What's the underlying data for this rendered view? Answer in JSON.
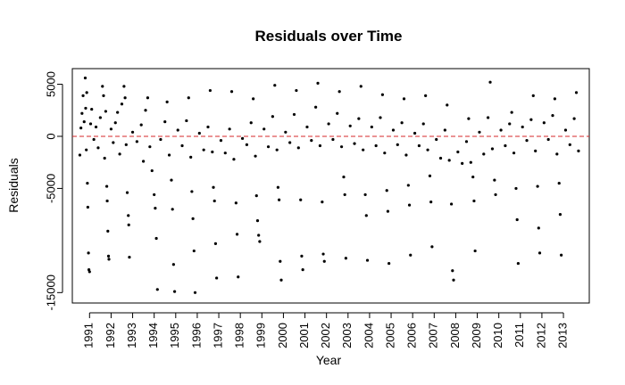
{
  "chart_data": {
    "type": "scatter",
    "title": "Residuals over Time",
    "xlabel": "Year",
    "ylabel": "Residuals",
    "x_ticks": [
      "1991",
      "1992",
      "1993",
      "1994",
      "1995",
      "1996",
      "1997",
      "1998",
      "1999",
      "2000",
      "2001",
      "2002",
      "2003",
      "2004",
      "2005",
      "2006",
      "2007",
      "2008",
      "2009",
      "2010",
      "2011",
      "2012",
      "2013"
    ],
    "y_ticks": [
      "5000",
      "0",
      "-5000",
      "-15000"
    ],
    "xlim": [
      1990.2,
      2014.2
    ],
    "ylim": [
      -16000,
      6500
    ],
    "grid": false,
    "legend": "none",
    "reference_line": {
      "y": 0,
      "color": "#d62728",
      "style": "dashed"
    },
    "point_color": "#000000",
    "series": [
      {
        "points": [
          [
            1990.55,
            -1800
          ],
          [
            1990.6,
            800
          ],
          [
            1990.65,
            2200
          ],
          [
            1990.7,
            3900
          ],
          [
            1990.75,
            1400
          ],
          [
            1990.8,
            5600
          ],
          [
            1990.82,
            2700
          ],
          [
            1990.85,
            -1300
          ],
          [
            1990.87,
            4200
          ],
          [
            1990.9,
            -4500
          ],
          [
            1990.92,
            -6800
          ],
          [
            1990.95,
            -11200
          ],
          [
            1990.97,
            -12800
          ],
          [
            1991.0,
            -13000
          ],
          [
            1991.05,
            1200
          ],
          [
            1991.1,
            2600
          ],
          [
            1991.2,
            -300
          ],
          [
            1991.3,
            900
          ],
          [
            1991.4,
            -1100
          ],
          [
            1991.5,
            1800
          ],
          [
            1991.6,
            4800
          ],
          [
            1991.65,
            3900
          ],
          [
            1991.7,
            -2100
          ],
          [
            1991.75,
            2400
          ],
          [
            1991.8,
            -4800
          ],
          [
            1991.82,
            -6200
          ],
          [
            1991.85,
            -9100
          ],
          [
            1991.88,
            -11500
          ],
          [
            1991.9,
            -11800
          ],
          [
            1992.0,
            700
          ],
          [
            1992.1,
            -600
          ],
          [
            1992.2,
            1300
          ],
          [
            1992.3,
            2300
          ],
          [
            1992.4,
            -1700
          ],
          [
            1992.5,
            3100
          ],
          [
            1992.6,
            4800
          ],
          [
            1992.65,
            3700
          ],
          [
            1992.7,
            -800
          ],
          [
            1992.75,
            -5400
          ],
          [
            1992.8,
            -7600
          ],
          [
            1992.82,
            -8500
          ],
          [
            1992.85,
            -11600
          ],
          [
            1993.0,
            400
          ],
          [
            1993.2,
            -500
          ],
          [
            1993.4,
            1100
          ],
          [
            1993.5,
            -2400
          ],
          [
            1993.6,
            2500
          ],
          [
            1993.7,
            3700
          ],
          [
            1993.8,
            -1000
          ],
          [
            1993.9,
            -3300
          ],
          [
            1994.0,
            -5600
          ],
          [
            1994.05,
            -6900
          ],
          [
            1994.1,
            -9800
          ],
          [
            1994.15,
            -14700
          ],
          [
            1994.3,
            -300
          ],
          [
            1994.5,
            1400
          ],
          [
            1994.6,
            3300
          ],
          [
            1994.7,
            -1800
          ],
          [
            1994.8,
            -4200
          ],
          [
            1994.85,
            -7000
          ],
          [
            1994.9,
            -12300
          ],
          [
            1994.95,
            -14900
          ],
          [
            1995.1,
            600
          ],
          [
            1995.3,
            -900
          ],
          [
            1995.5,
            1500
          ],
          [
            1995.6,
            3700
          ],
          [
            1995.7,
            -2000
          ],
          [
            1995.75,
            -5300
          ],
          [
            1995.8,
            -7900
          ],
          [
            1995.85,
            -11000
          ],
          [
            1995.9,
            -15000
          ],
          [
            1996.1,
            300
          ],
          [
            1996.3,
            -1300
          ],
          [
            1996.5,
            900
          ],
          [
            1996.6,
            4400
          ],
          [
            1996.7,
            -1500
          ],
          [
            1996.75,
            -4900
          ],
          [
            1996.8,
            -6200
          ],
          [
            1996.85,
            -10300
          ],
          [
            1996.9,
            -13600
          ],
          [
            1997.1,
            -400
          ],
          [
            1997.3,
            -1600
          ],
          [
            1997.5,
            700
          ],
          [
            1997.6,
            4300
          ],
          [
            1997.7,
            -2200
          ],
          [
            1997.8,
            -6400
          ],
          [
            1997.85,
            -9400
          ],
          [
            1997.9,
            -13500
          ],
          [
            1998.1,
            -200
          ],
          [
            1998.3,
            -800
          ],
          [
            1998.5,
            1300
          ],
          [
            1998.6,
            3600
          ],
          [
            1998.7,
            -1900
          ],
          [
            1998.75,
            -5700
          ],
          [
            1998.8,
            -8100
          ],
          [
            1998.85,
            -9500
          ],
          [
            1998.9,
            -10100
          ],
          [
            1999.1,
            700
          ],
          [
            1999.3,
            -1000
          ],
          [
            1999.5,
            1900
          ],
          [
            1999.6,
            4900
          ],
          [
            1999.7,
            -1300
          ],
          [
            1999.75,
            -4900
          ],
          [
            1999.8,
            -6100
          ],
          [
            1999.85,
            -12000
          ],
          [
            1999.9,
            -13800
          ],
          [
            2000.1,
            400
          ],
          [
            2000.3,
            -600
          ],
          [
            2000.5,
            2100
          ],
          [
            2000.6,
            4400
          ],
          [
            2000.7,
            -1100
          ],
          [
            2000.8,
            -6100
          ],
          [
            2000.85,
            -11500
          ],
          [
            2000.9,
            -12800
          ],
          [
            2001.1,
            900
          ],
          [
            2001.3,
            -400
          ],
          [
            2001.5,
            2800
          ],
          [
            2001.6,
            5100
          ],
          [
            2001.7,
            -900
          ],
          [
            2001.8,
            -6300
          ],
          [
            2001.85,
            -11300
          ],
          [
            2001.9,
            -12000
          ],
          [
            2002.1,
            1200
          ],
          [
            2002.3,
            -300
          ],
          [
            2002.5,
            2200
          ],
          [
            2002.6,
            4300
          ],
          [
            2002.7,
            -1000
          ],
          [
            2002.8,
            -3900
          ],
          [
            2002.85,
            -5600
          ],
          [
            2002.9,
            -11700
          ],
          [
            2003.1,
            1000
          ],
          [
            2003.3,
            -700
          ],
          [
            2003.5,
            1700
          ],
          [
            2003.6,
            4800
          ],
          [
            2003.7,
            -1300
          ],
          [
            2003.8,
            -5600
          ],
          [
            2003.85,
            -7600
          ],
          [
            2003.9,
            -11900
          ],
          [
            2004.1,
            900
          ],
          [
            2004.3,
            -900
          ],
          [
            2004.5,
            1800
          ],
          [
            2004.6,
            4000
          ],
          [
            2004.7,
            -1600
          ],
          [
            2004.8,
            -5200
          ],
          [
            2004.85,
            -7200
          ],
          [
            2004.9,
            -12200
          ],
          [
            2005.1,
            600
          ],
          [
            2005.3,
            -800
          ],
          [
            2005.5,
            1300
          ],
          [
            2005.6,
            3600
          ],
          [
            2005.7,
            -1800
          ],
          [
            2005.8,
            -4700
          ],
          [
            2005.85,
            -6600
          ],
          [
            2005.9,
            -11400
          ],
          [
            2006.1,
            300
          ],
          [
            2006.3,
            -900
          ],
          [
            2006.5,
            1200
          ],
          [
            2006.6,
            3900
          ],
          [
            2006.7,
            -1300
          ],
          [
            2006.8,
            -3800
          ],
          [
            2006.85,
            -6300
          ],
          [
            2006.9,
            -10600
          ],
          [
            2007.1,
            -300
          ],
          [
            2007.3,
            -2100
          ],
          [
            2007.5,
            600
          ],
          [
            2007.6,
            3000
          ],
          [
            2007.7,
            -2300
          ],
          [
            2007.8,
            -6500
          ],
          [
            2007.85,
            -12900
          ],
          [
            2007.9,
            -13800
          ],
          [
            2008.1,
            -1500
          ],
          [
            2008.3,
            -2600
          ],
          [
            2008.5,
            -500
          ],
          [
            2008.6,
            1700
          ],
          [
            2008.7,
            -2500
          ],
          [
            2008.8,
            -3900
          ],
          [
            2008.85,
            -6200
          ],
          [
            2008.9,
            -11000
          ],
          [
            2009.1,
            400
          ],
          [
            2009.3,
            -1700
          ],
          [
            2009.5,
            1800
          ],
          [
            2009.6,
            5200
          ],
          [
            2009.7,
            -1200
          ],
          [
            2009.8,
            -4200
          ],
          [
            2009.85,
            -5600
          ],
          [
            2010.1,
            600
          ],
          [
            2010.3,
            -900
          ],
          [
            2010.5,
            1200
          ],
          [
            2010.6,
            2300
          ],
          [
            2010.7,
            -1600
          ],
          [
            2010.8,
            -5000
          ],
          [
            2010.85,
            -8000
          ],
          [
            2010.9,
            -12200
          ],
          [
            2011.1,
            900
          ],
          [
            2011.3,
            -400
          ],
          [
            2011.5,
            1600
          ],
          [
            2011.6,
            3900
          ],
          [
            2011.7,
            -1400
          ],
          [
            2011.8,
            -4800
          ],
          [
            2011.85,
            -8800
          ],
          [
            2011.9,
            -11200
          ],
          [
            2012.1,
            1300
          ],
          [
            2012.3,
            -300
          ],
          [
            2012.5,
            2000
          ],
          [
            2012.6,
            3600
          ],
          [
            2012.7,
            -1700
          ],
          [
            2012.8,
            -4500
          ],
          [
            2012.85,
            -7500
          ],
          [
            2012.9,
            -11400
          ],
          [
            2013.1,
            600
          ],
          [
            2013.3,
            -800
          ],
          [
            2013.5,
            1700
          ],
          [
            2013.6,
            4200
          ],
          [
            2013.7,
            -1400
          ]
        ]
      }
    ]
  }
}
